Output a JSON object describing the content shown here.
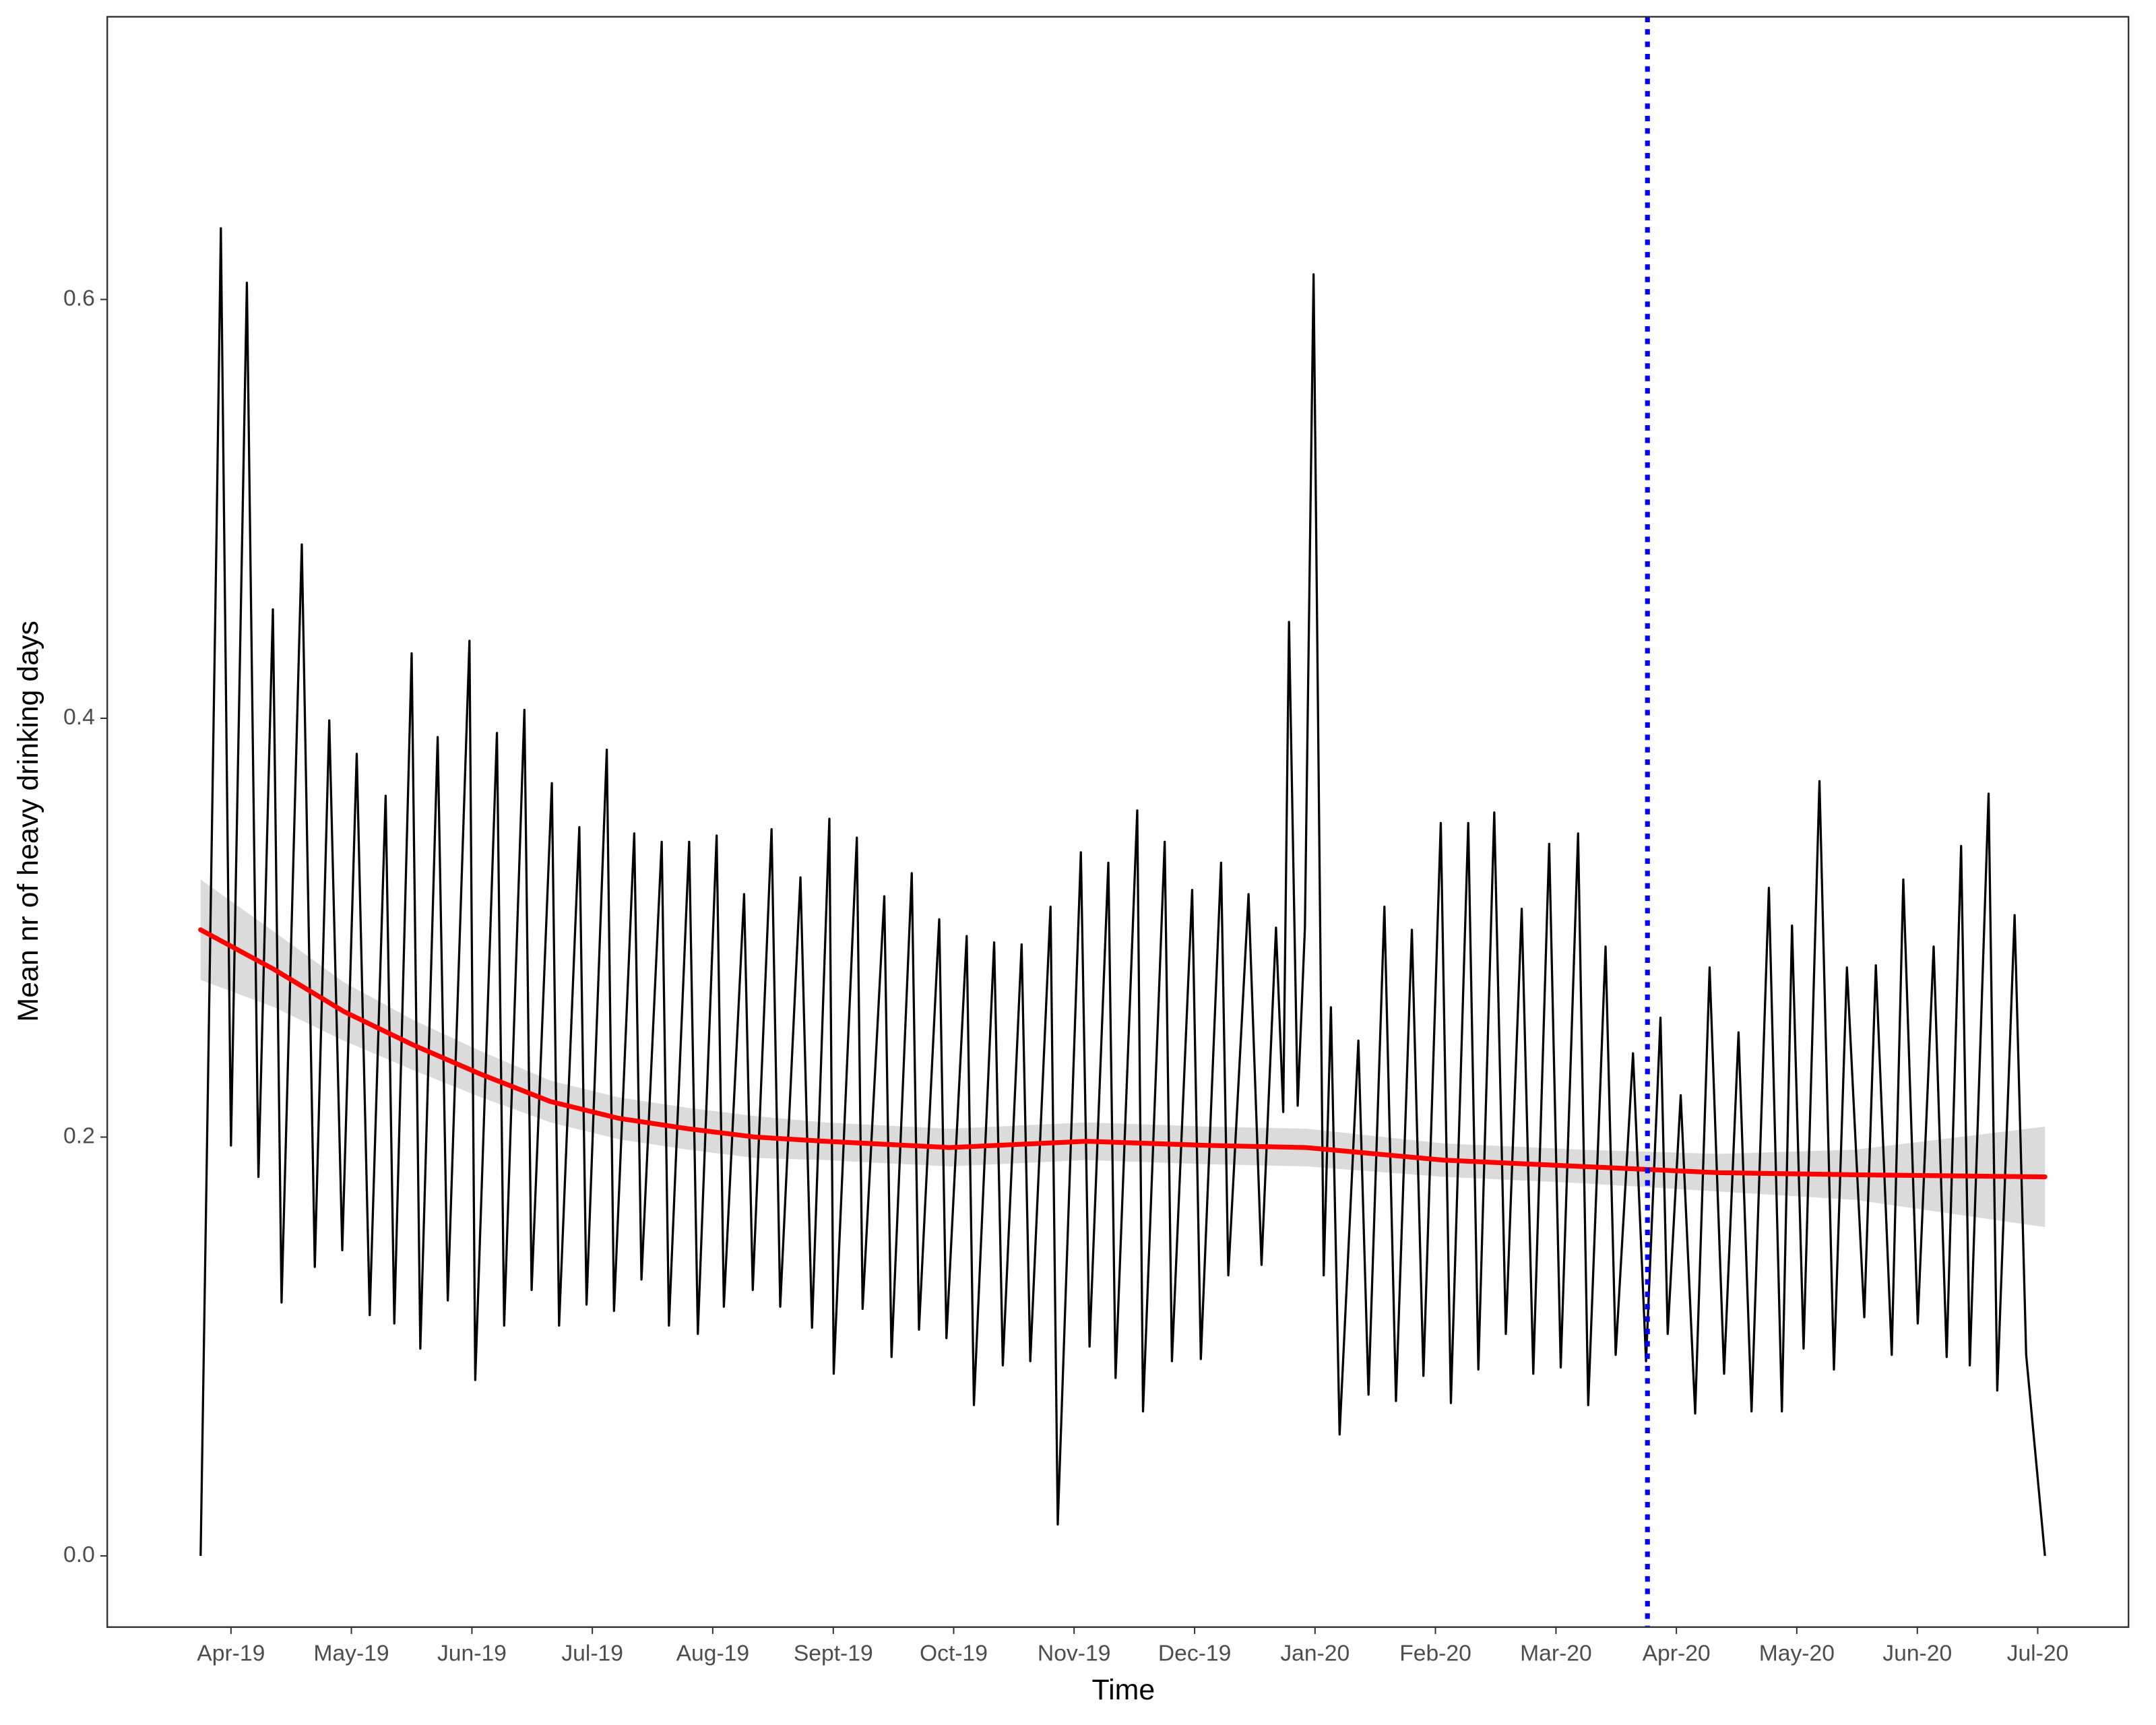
{
  "chart_data": {
    "type": "line",
    "x_label": "Time",
    "y_label": "Mean nr of heavy drinking days",
    "xlim": [
      2019.1644,
      2020.5628
    ],
    "ylim": [
      -0.034,
      0.735
    ],
    "xticks": [
      {
        "value": 2019.25,
        "label": "Apr-19"
      },
      {
        "value": 2019.3333,
        "label": "May-19"
      },
      {
        "value": 2019.4167,
        "label": "Jun-19"
      },
      {
        "value": 2019.5,
        "label": "Jul-19"
      },
      {
        "value": 2019.5833,
        "label": "Aug-19"
      },
      {
        "value": 2019.6667,
        "label": "Sept-19"
      },
      {
        "value": 2019.75,
        "label": "Oct-19"
      },
      {
        "value": 2019.8333,
        "label": "Nov-19"
      },
      {
        "value": 2019.9167,
        "label": "Dec-19"
      },
      {
        "value": 2020.0,
        "label": "Jan-20"
      },
      {
        "value": 2020.0833,
        "label": "Feb-20"
      },
      {
        "value": 2020.1667,
        "label": "Mar-20"
      },
      {
        "value": 2020.25,
        "label": "Apr-20"
      },
      {
        "value": 2020.3333,
        "label": "May-20"
      },
      {
        "value": 2020.4167,
        "label": "Jun-20"
      },
      {
        "value": 2020.5,
        "label": "Jul-20"
      }
    ],
    "yticks": [
      {
        "value": 0,
        "label": "0.0"
      },
      0.2,
      0.4,
      0.6
    ],
    "color": "#000000",
    "x": [
      2019.229,
      2019.24,
      2019.243,
      2019.25,
      2019.261,
      2019.269,
      2019.279,
      2019.285,
      2019.299,
      2019.308,
      2019.318,
      2019.327,
      2019.337,
      2019.346,
      2019.357,
      2019.363,
      2019.375,
      2019.381,
      2019.393,
      2019.4,
      2019.415,
      2019.419,
      2019.434,
      2019.439,
      2019.453,
      2019.458,
      2019.472,
      2019.477,
      2019.491,
      2019.496,
      2019.51,
      2019.515,
      2019.529,
      2019.534,
      2019.548,
      2019.553,
      2019.567,
      2019.573,
      2019.586,
      2019.591,
      2019.605,
      2019.611,
      2019.624,
      2019.63,
      2019.644,
      2019.652,
      2019.664,
      2019.667,
      2019.683,
      2019.687,
      2019.702,
      2019.707,
      2019.721,
      2019.726,
      2019.74,
      2019.745,
      2019.759,
      2019.764,
      2019.778,
      2019.784,
      2019.797,
      2019.803,
      2019.817,
      2019.822,
      2019.838,
      2019.844,
      2019.857,
      2019.862,
      2019.877,
      2019.881,
      2019.896,
      2019.901,
      2019.915,
      2019.921,
      2019.935,
      2019.94,
      2019.954,
      2019.963,
      2019.973,
      2019.978,
      2019.982,
      2019.988,
      2019.993,
      2019.999,
      2020.006,
      2020.011,
      2020.017,
      2020.03,
      2020.037,
      2020.048,
      2020.056,
      2020.067,
      2020.075,
      2020.087,
      2020.094,
      2020.106,
      2020.113,
      2020.124,
      2020.132,
      2020.143,
      2020.151,
      2020.162,
      2020.17,
      2020.182,
      2020.189,
      2020.201,
      2020.208,
      2020.22,
      2020.229,
      2020.239,
      2020.244,
      2020.253,
      2020.263,
      2020.273,
      2020.283,
      2020.293,
      2020.302,
      2020.314,
      2020.323,
      2020.33,
      2020.338,
      2020.349,
      2020.359,
      2020.368,
      2020.38,
      2020.388,
      2020.399,
      2020.407,
      2020.417,
      2020.428,
      2020.437,
      2020.447,
      2020.453,
      2020.466,
      2020.472,
      2020.484,
      2020.492,
      2020.505
    ],
    "values": [
      0,
      0.488,
      0.634,
      0.196,
      0.608,
      0.181,
      0.452,
      0.121,
      0.483,
      0.138,
      0.399,
      0.146,
      0.383,
      0.115,
      0.363,
      0.111,
      0.431,
      0.099,
      0.391,
      0.122,
      0.437,
      0.084,
      0.393,
      0.11,
      0.404,
      0.127,
      0.369,
      0.11,
      0.348,
      0.12,
      0.385,
      0.117,
      0.345,
      0.132,
      0.341,
      0.11,
      0.341,
      0.106,
      0.344,
      0.119,
      0.316,
      0.127,
      0.347,
      0.119,
      0.324,
      0.109,
      0.352,
      0.087,
      0.343,
      0.118,
      0.315,
      0.095,
      0.326,
      0.108,
      0.304,
      0.104,
      0.296,
      0.072,
      0.293,
      0.091,
      0.292,
      0.093,
      0.31,
      0.015,
      0.336,
      0.1,
      0.331,
      0.085,
      0.356,
      0.069,
      0.341,
      0.093,
      0.318,
      0.094,
      0.331,
      0.134,
      0.316,
      0.139,
      0.3,
      0.212,
      0.446,
      0.215,
      0.3,
      0.612,
      0.134,
      0.262,
      0.058,
      0.246,
      0.077,
      0.31,
      0.074,
      0.299,
      0.086,
      0.35,
      0.073,
      0.35,
      0.089,
      0.355,
      0.106,
      0.309,
      0.087,
      0.34,
      0.09,
      0.345,
      0.072,
      0.291,
      0.096,
      0.24,
      0.093,
      0.257,
      0.106,
      0.22,
      0.068,
      0.281,
      0.087,
      0.25,
      0.069,
      0.319,
      0.069,
      0.301,
      0.099,
      0.37,
      0.089,
      0.281,
      0.114,
      0.282,
      0.096,
      0.323,
      0.111,
      0.291,
      0.095,
      0.339,
      0.091,
      0.364,
      0.079,
      0.306,
      0.096,
      0
    ],
    "smooth": {
      "color": "#ff0000",
      "band_color": "#d9d9d9",
      "x": [
        2019.229,
        2019.28,
        2019.328,
        2019.376,
        2019.423,
        2019.471,
        2019.518,
        2019.566,
        2019.613,
        2019.661,
        2019.747,
        2019.842,
        2019.927,
        2019.994,
        2020.089,
        2020.184,
        2020.279,
        2020.374,
        2020.505
      ],
      "values": [
        0.299,
        0.28,
        0.26,
        0.244,
        0.23,
        0.217,
        0.209,
        0.204,
        0.2,
        0.198,
        0.195,
        0.198,
        0.196,
        0.195,
        0.189,
        0.186,
        0.183,
        0.182,
        0.181
      ],
      "lower": [
        0.275,
        0.262,
        0.246,
        0.232,
        0.219,
        0.207,
        0.199,
        0.194,
        0.19,
        0.189,
        0.186,
        0.189,
        0.187,
        0.186,
        0.181,
        0.178,
        0.174,
        0.17,
        0.157
      ],
      "upper": [
        0.323,
        0.298,
        0.274,
        0.256,
        0.241,
        0.227,
        0.219,
        0.214,
        0.21,
        0.207,
        0.204,
        0.207,
        0.205,
        0.204,
        0.197,
        0.194,
        0.192,
        0.194,
        0.205
      ]
    },
    "vline": {
      "x": 2020.23,
      "color": "#0000ff"
    }
  }
}
